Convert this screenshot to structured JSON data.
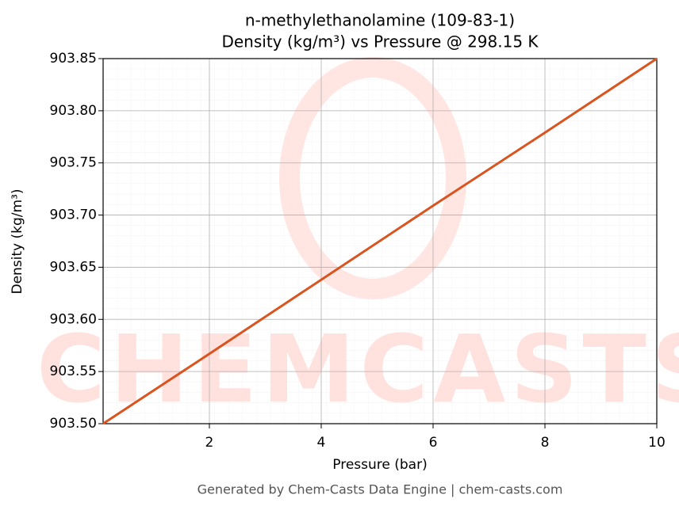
{
  "chart_data": {
    "type": "line",
    "title": "n-methylethanolamine (109-83-1)",
    "subtitle": "Density (kg/m³) vs Pressure @ 298.15 K",
    "x_label": "Pressure (bar)",
    "y_label": "Density (kg/m³)",
    "watermark": "CHEMCASTS",
    "footer": "Generated by Chem-Casts Data Engine | chem-casts.com",
    "x": [
      0.1,
      2,
      4,
      6,
      8,
      10
    ],
    "series": [
      {
        "name": "Density",
        "color": "#d9541e",
        "values": [
          903.5,
          903.567,
          903.638,
          903.709,
          903.779,
          903.85
        ]
      }
    ],
    "xlim": [
      0.1,
      10
    ],
    "ylim": [
      903.5,
      903.85
    ],
    "xticks": [
      2,
      4,
      6,
      8,
      10
    ],
    "yticks": [
      {
        "value": 903.5,
        "label": "903.50"
      },
      {
        "value": 903.55,
        "label": "903.55"
      },
      {
        "value": 903.6,
        "label": "903.60"
      },
      {
        "value": 903.65,
        "label": "903.65"
      },
      {
        "value": 903.7,
        "label": "903.70"
      },
      {
        "value": 903.75,
        "label": "903.75"
      },
      {
        "value": 903.8,
        "label": "903.80"
      },
      {
        "value": 903.85,
        "label": "903.85"
      }
    ],
    "grid": true
  }
}
